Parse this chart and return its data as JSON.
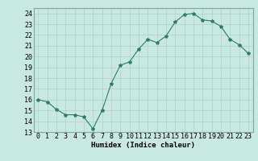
{
  "xlabel": "Humidex (Indice chaleur)",
  "x": [
    0,
    1,
    2,
    3,
    4,
    5,
    6,
    7,
    8,
    9,
    10,
    11,
    12,
    13,
    14,
    15,
    16,
    17,
    18,
    19,
    20,
    21,
    22,
    23
  ],
  "y": [
    16.0,
    15.8,
    15.1,
    14.6,
    14.6,
    14.4,
    13.3,
    15.0,
    17.5,
    19.2,
    19.5,
    20.7,
    21.6,
    21.3,
    21.9,
    23.2,
    23.9,
    24.0,
    23.4,
    23.3,
    22.8,
    21.6,
    21.1,
    20.3
  ],
  "ylim": [
    13,
    24.5
  ],
  "yticks": [
    13,
    14,
    15,
    16,
    17,
    18,
    19,
    20,
    21,
    22,
    23,
    24
  ],
  "line_color": "#2e7d6e",
  "marker": "*",
  "bg_color": "#c8e8e0",
  "grid_color": "#b0d0c8",
  "label_fontsize": 6.5,
  "tick_fontsize": 6.0
}
